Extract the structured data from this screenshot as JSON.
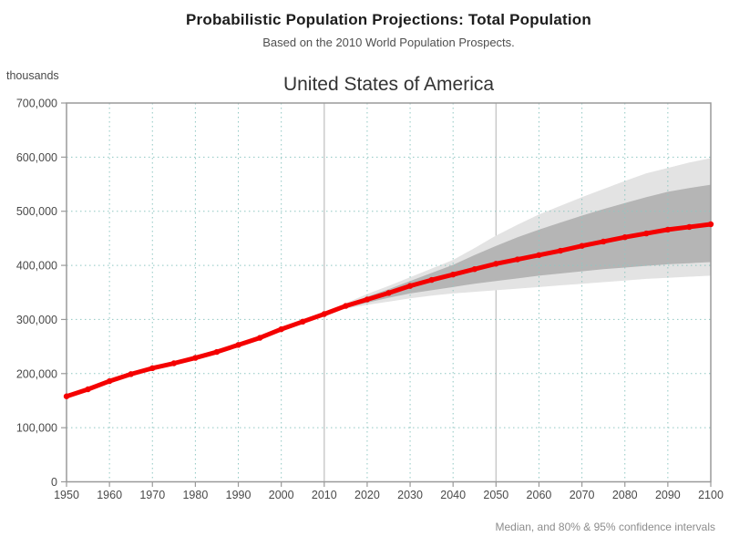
{
  "header": {
    "title": "Probabilistic Population Projections: Total Population",
    "subtitle": "Based on the 2010 World Population Prospects."
  },
  "chart": {
    "unit_label": "thousands",
    "title": "United States of America",
    "footnote": "Median, and 80% & 95% confidence intervals"
  },
  "colors": {
    "median": "#f40000",
    "band80": "#b5b5b5",
    "band95": "#e3e3e3",
    "grid": "#8fc7c2",
    "reference_line": "#c4c4c4",
    "axis": "#9a9a9a",
    "tick_text": "#4a4a4a"
  },
  "chart_data": {
    "type": "line",
    "title": "United States of America",
    "ylabel": "thousands",
    "footnote": "Median, and 80% & 95% confidence intervals",
    "xlim": [
      1950,
      2100
    ],
    "ylim": [
      0,
      700000
    ],
    "x_ticks": [
      1950,
      1960,
      1970,
      1980,
      1990,
      2000,
      2010,
      2020,
      2030,
      2040,
      2050,
      2060,
      2070,
      2080,
      2090,
      2100
    ],
    "y_ticks": [
      0,
      100000,
      200000,
      300000,
      400000,
      500000,
      600000,
      700000
    ],
    "y_tick_labels": [
      "0",
      "100,000",
      "200,000",
      "300,000",
      "400,000",
      "500,000",
      "600,000",
      "700,000"
    ],
    "grid": "dotted",
    "legend_position": "none",
    "reference_lines_x": [
      2010,
      2050
    ],
    "series": [
      {
        "name": "median",
        "years": [
          1950,
          1955,
          1960,
          1965,
          1970,
          1975,
          1980,
          1985,
          1990,
          1995,
          2000,
          2005,
          2010,
          2015,
          2020,
          2025,
          2030,
          2035,
          2040,
          2045,
          2050,
          2055,
          2060,
          2065,
          2070,
          2075,
          2080,
          2085,
          2090,
          2095,
          2100
        ],
        "values": [
          158000,
          171000,
          186000,
          199000,
          210000,
          219000,
          229000,
          240000,
          253000,
          266000,
          282000,
          296000,
          310000,
          325000,
          337000,
          349000,
          362000,
          373000,
          383000,
          393000,
          403000,
          411000,
          419000,
          427000,
          436000,
          444000,
          452000,
          459000,
          466000,
          471000,
          476000
        ]
      },
      {
        "name": "80% confidence interval",
        "years": [
          2010,
          2015,
          2020,
          2025,
          2030,
          2035,
          2040,
          2045,
          2050,
          2055,
          2060,
          2065,
          2070,
          2075,
          2080,
          2085,
          2090,
          2095,
          2100
        ],
        "lower": [
          310000,
          322000,
          331000,
          340000,
          348000,
          354000,
          360000,
          366000,
          371000,
          376000,
          381000,
          385000,
          389000,
          393000,
          396000,
          399000,
          402000,
          404000,
          406000
        ],
        "upper": [
          310000,
          327000,
          342000,
          356000,
          371000,
          386000,
          401000,
          419000,
          436000,
          452000,
          466000,
          479000,
          492000,
          504000,
          515000,
          526000,
          536000,
          543000,
          549000
        ]
      },
      {
        "name": "95% confidence interval",
        "years": [
          2010,
          2015,
          2020,
          2025,
          2030,
          2035,
          2040,
          2045,
          2050,
          2055,
          2060,
          2065,
          2070,
          2075,
          2080,
          2085,
          2090,
          2095,
          2100
        ],
        "lower": [
          310000,
          320000,
          327000,
          333000,
          339000,
          344000,
          348000,
          351000,
          354000,
          357000,
          360000,
          363000,
          366000,
          369000,
          372000,
          375000,
          377000,
          379000,
          381000
        ],
        "upper": [
          310000,
          330000,
          347000,
          362000,
          378000,
          394000,
          410000,
          432000,
          455000,
          475000,
          494000,
          510000,
          526000,
          541000,
          556000,
          570000,
          580000,
          590000,
          598000
        ]
      }
    ]
  }
}
